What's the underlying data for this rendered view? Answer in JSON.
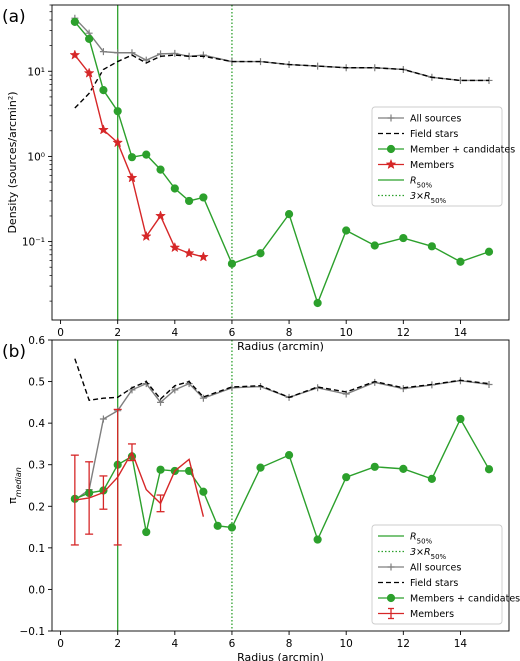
{
  "chart_data": [
    {
      "panel_label": "(a)",
      "type": "line",
      "xlabel": "Radius (arcmin)",
      "ylabel": "Density (sources/arcmin²)",
      "yscale": "log",
      "xlim": [
        -0.3,
        15.7
      ],
      "ylim": [
        0.012,
        60
      ],
      "xticks": [
        0,
        2,
        4,
        6,
        8,
        10,
        12,
        14
      ],
      "yticks": [
        0.1,
        1,
        10
      ],
      "ytick_labels": [
        "10⁻¹",
        "10⁰",
        "10¹"
      ],
      "legend_position": "center-right",
      "series": [
        {
          "name": "All sources",
          "color": "#7f7f7f",
          "marker": "plus",
          "x": [
            0.5,
            1,
            1.5,
            2,
            2.5,
            3,
            3.5,
            4,
            4.5,
            5,
            6,
            7,
            8,
            9,
            10,
            11,
            12,
            13,
            14,
            15
          ],
          "y": [
            42,
            28,
            17,
            16.5,
            16.5,
            13.5,
            16,
            16.2,
            15,
            15.5,
            13,
            13,
            12,
            11.5,
            11,
            11,
            10.5,
            8.5,
            7.8,
            7.8
          ]
        },
        {
          "name": "Field stars",
          "color": "#000000",
          "dash": "5,3",
          "x": [
            0.5,
            1,
            1.5,
            2,
            2.5,
            3,
            3.5,
            4,
            4.5,
            5,
            6,
            7,
            8,
            9,
            10,
            11,
            12,
            13,
            14,
            15
          ],
          "y": [
            3.7,
            5.5,
            10.5,
            13,
            15.5,
            12.5,
            15,
            15.5,
            15,
            15,
            13,
            13,
            12,
            11.5,
            11,
            11,
            10.5,
            8.5,
            7.8,
            7.8
          ]
        },
        {
          "name": "Member + candidates",
          "color": "#2ca02c",
          "marker": "circle",
          "x": [
            0.5,
            1,
            1.5,
            2,
            2.5,
            3,
            3.5,
            4,
            4.5,
            5,
            6,
            7,
            8,
            9,
            10,
            11,
            12,
            13,
            14,
            15
          ],
          "y": [
            38,
            24,
            6,
            3.4,
            0.98,
            1.05,
            0.7,
            0.42,
            0.3,
            0.33,
            0.055,
            0.073,
            0.21,
            0.019,
            0.135,
            0.09,
            0.11,
            0.088,
            0.058,
            0.076
          ]
        },
        {
          "name": "Members",
          "color": "#d62728",
          "marker": "star",
          "x": [
            0.5,
            1,
            1.5,
            2,
            2.5,
            3,
            3.5,
            4,
            4.5,
            5
          ],
          "y": [
            15.5,
            9.5,
            2.05,
            1.45,
            0.56,
            0.115,
            0.2,
            0.085,
            0.073,
            0.066
          ]
        }
      ],
      "vlines": [
        {
          "name": "R50%",
          "x": 2,
          "color": "#2ca02c",
          "style": "solid"
        },
        {
          "name": "3×R50%",
          "x": 6,
          "color": "#2ca02c",
          "style": "dotted"
        }
      ],
      "legend_entries": [
        {
          "label": "All sources",
          "series": "All sources"
        },
        {
          "label": "Field stars",
          "series": "Field stars"
        },
        {
          "label": "Member + candidates",
          "series": "Member + candidates"
        },
        {
          "label": "Members",
          "series": "Members"
        },
        {
          "label": "R",
          "sub": "50%",
          "vline": "R50%"
        },
        {
          "label": "3×R",
          "sub": "50%",
          "vline": "3×R50%"
        }
      ]
    },
    {
      "panel_label": "(b)",
      "type": "line",
      "xlabel": "Radius (arcmin)",
      "ylabel": "π",
      "ylabel_sub": "median",
      "xlim": [
        -0.3,
        15.7
      ],
      "ylim": [
        -0.1,
        0.6
      ],
      "xticks": [
        0,
        2,
        4,
        6,
        8,
        10,
        12,
        14
      ],
      "yticks": [
        -0.1,
        0.0,
        0.1,
        0.2,
        0.3,
        0.4,
        0.5,
        0.6
      ],
      "ytick_labels": [
        "−0.1",
        "0.0",
        "0.1",
        "0.2",
        "0.3",
        "0.4",
        "0.5",
        "0.6"
      ],
      "legend_position": "lower-right",
      "series": [
        {
          "name": "All sources",
          "color": "#7f7f7f",
          "marker": "plus",
          "x": [
            0.5,
            1,
            1.5,
            2,
            2.5,
            3,
            3.5,
            4,
            4.5,
            5,
            6,
            7,
            8,
            9,
            10,
            11,
            12,
            13,
            14,
            15
          ],
          "y": [
            0.215,
            0.24,
            0.41,
            0.43,
            0.48,
            0.495,
            0.45,
            0.48,
            0.495,
            0.46,
            0.485,
            0.488,
            0.462,
            0.485,
            0.47,
            0.498,
            0.483,
            0.492,
            0.502,
            0.493
          ]
        },
        {
          "name": "Field stars",
          "color": "#000000",
          "dash": "5,3",
          "x": [
            0.5,
            1,
            1.5,
            2,
            2.5,
            3,
            3.5,
            4,
            4.5,
            5,
            6,
            7,
            8,
            9,
            10,
            11,
            12,
            13,
            14,
            15
          ],
          "y": [
            0.555,
            0.455,
            0.46,
            0.462,
            0.485,
            0.5,
            0.458,
            0.49,
            0.5,
            0.463,
            0.487,
            0.49,
            0.462,
            0.487,
            0.475,
            0.5,
            0.485,
            0.493,
            0.503,
            0.495
          ]
        },
        {
          "name": "Members + candidates",
          "color": "#2ca02c",
          "marker": "circle",
          "x": [
            0.5,
            1,
            1.5,
            2,
            2.5,
            3,
            3.5,
            4,
            4.5,
            5,
            5.5,
            6,
            7,
            8,
            9,
            10,
            11,
            12,
            13,
            14,
            15
          ],
          "y": [
            0.218,
            0.232,
            0.238,
            0.3,
            0.32,
            0.138,
            0.288,
            0.285,
            0.285,
            0.235,
            0.153,
            0.149,
            0.293,
            0.323,
            0.12,
            0.27,
            0.295,
            0.29,
            0.266,
            0.41,
            0.289
          ]
        },
        {
          "name": "Members",
          "color": "#d62728",
          "marker": "errorbar",
          "x": [
            0.5,
            1,
            1.5,
            2,
            2.5,
            3,
            3.5,
            4,
            4.5,
            5
          ],
          "y": [
            0.215,
            0.22,
            0.233,
            0.27,
            0.33,
            0.24,
            0.207,
            0.285,
            0.313,
            0.175
          ],
          "err": [
            0.108,
            0.087,
            0.04,
            0.163,
            0.02,
            0.0,
            0.02,
            0.0,
            0.0,
            0.0
          ]
        }
      ],
      "vlines": [
        {
          "name": "R50%",
          "x": 2,
          "color": "#2ca02c",
          "style": "solid"
        },
        {
          "name": "3×R50%",
          "x": 6,
          "color": "#2ca02c",
          "style": "dotted"
        }
      ],
      "legend_entries": [
        {
          "label": "R",
          "sub": "50%",
          "vline": "R50%"
        },
        {
          "label": "3×R",
          "sub": "50%",
          "vline": "3×R50%"
        },
        {
          "label": "All sources",
          "series": "All sources"
        },
        {
          "label": "Field stars",
          "series": "Field stars"
        },
        {
          "label": "Members + candidates",
          "series": "Members + candidates"
        },
        {
          "label": "Members",
          "series": "Members"
        }
      ]
    }
  ]
}
